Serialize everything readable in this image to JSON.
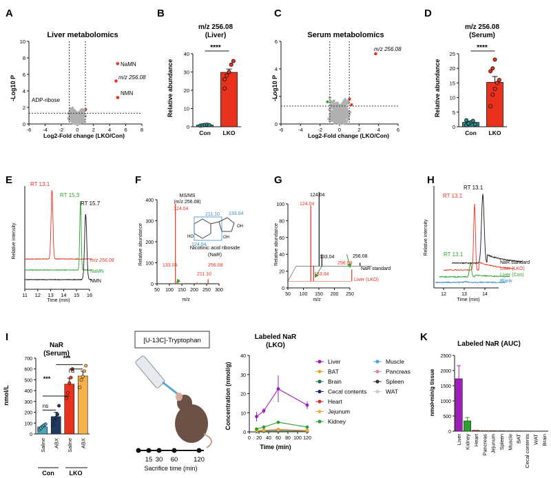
{
  "panels": {
    "A": {
      "letter": "A",
      "title": "Liver metabolomics",
      "ylabel": "-Log10 P",
      "xlabel": "Log2-Fold change (LKO/Con)",
      "xticks": [
        "-6",
        "-4",
        "-2",
        "0",
        "2",
        "4",
        "6",
        "8"
      ],
      "yticks": [
        "0",
        "2",
        "4",
        "6",
        "8",
        "10"
      ],
      "labels": {
        "namn": "NaMN",
        "mz": "m/z 256.08",
        "nmn": "NMN",
        "adp": "ADP-ribose"
      }
    },
    "B": {
      "letter": "B",
      "title1": "m/z 256.08",
      "title2": "(Liver)",
      "ylabel": "Relative abundance",
      "sig": "****",
      "yticks": [
        "0",
        "10",
        "20",
        "30",
        "40"
      ],
      "cats": [
        "Con",
        "LKO"
      ]
    },
    "C": {
      "letter": "C",
      "title": "Serum metabolomics",
      "ylabel": "-Log10 P",
      "xlabel": "Log2-Fold change (LKO/Con)",
      "xticks": [
        "-6",
        "-4",
        "-2",
        "0",
        "2",
        "4",
        "6"
      ],
      "yticks": [
        "0",
        "2",
        "4",
        "6"
      ],
      "labels": {
        "mz": "m/z 256.08"
      }
    },
    "D": {
      "letter": "D",
      "title1": "m/z 256.08",
      "title2": "(Serum)",
      "ylabel": "Relative abundance",
      "sig": "****",
      "yticks": [
        "0",
        "5",
        "10",
        "15",
        "20",
        "25"
      ],
      "cats": [
        "Con",
        "LKO"
      ]
    },
    "E": {
      "letter": "E",
      "ylabel": "Relative intensity",
      "xlabel": "Time (min)",
      "xticks": [
        "11",
        "12",
        "13",
        "14",
        "15",
        "16"
      ],
      "rt_red": "RT 13.1",
      "rt_green": "RT 15.3",
      "rt_black": "RT 15.7",
      "tr_red": "m/z 256.08",
      "tr_green": "NaMN",
      "tr_black": "NMN"
    },
    "F": {
      "letter": "F",
      "ylabel": "Relative abundance",
      "xlabel": "m/z",
      "msms1": "MS/MS",
      "msms2": "(m/z 256.08)",
      "xticks": [
        "50",
        "100",
        "150",
        "200",
        "250",
        "300"
      ],
      "yticks": [
        "0",
        "100",
        "200",
        "300",
        "400"
      ],
      "peak1": "124.04",
      "peak2": "133.04",
      "peak3": "211.10",
      "peak4": "256.08",
      "struct1": "211.10",
      "struct2": "133.04",
      "struct3": "124.04",
      "name1": "Nicotinic acid riboside",
      "name2": "(NaR)"
    },
    "G": {
      "letter": "G",
      "ylabel": "Relative abundance",
      "xlabel": "m/z",
      "xticks": [
        "50",
        "100",
        "150",
        "200",
        "250"
      ],
      "yticks": [
        "0",
        "20",
        "40",
        "60",
        "80",
        "100"
      ],
      "pk_black1": "124.04",
      "pk_black2": "133.04",
      "pk_black3": "256.08",
      "pk_red1": "124.04",
      "pk_red2": "133.04",
      "pk_red3": "256.08",
      "tr_black": "NaR standard",
      "tr_red": "Liver (LKO)"
    },
    "H": {
      "letter": "H",
      "ylabel": "Relative intensity",
      "xlabel": "Time (min)",
      "xticks": [
        "12",
        "13",
        "14"
      ],
      "rt_black": "RT 13.1",
      "rt_red": "RT 13.1",
      "rt_green": "RT 13.1",
      "tr_black": "NaR standard",
      "tr_red": "Liver (LKO)",
      "tr_green": "Liver (Con)",
      "tr_blue": "Blank"
    },
    "I": {
      "letter": "I",
      "title1": "NaR",
      "title2": "(Serum)",
      "ylabel": "nmol/L",
      "yticks": [
        "0",
        "100",
        "200",
        "300",
        "400",
        "500",
        "600",
        "700"
      ],
      "cats": [
        "Saline",
        "ABX",
        "Saline",
        "ABX"
      ],
      "groups": [
        "Con",
        "LKO"
      ],
      "sig_a": "***",
      "sig_b": "***",
      "ns_a": "ns",
      "ns_b": "ns"
    },
    "J": {
      "letter": "J",
      "tracer": "[U-13C]-Tryptophan",
      "sac_label": "Sacrifice time (min)",
      "times": [
        "15",
        "30",
        "60",
        "120"
      ],
      "title1": "Labeled NaR",
      "title2": "(LKO)",
      "ylabel": "Concentration (nmol/g)",
      "xlabel": "Time (min)",
      "xticks": [
        "0",
        "20",
        "40",
        "60",
        "80",
        "100",
        "120"
      ],
      "yticks": [
        "0",
        "10",
        "20",
        "30",
        "40"
      ]
    },
    "K": {
      "letter": "K",
      "title": "Labeled NaR (AUC)",
      "ylabel": "nmol•min/g tissue",
      "yticks": [
        "0",
        "500",
        "1000",
        "1500",
        "2000",
        "2500"
      ]
    }
  },
  "colors": {
    "red": "#e8321e",
    "green": "#2ca02c",
    "gray": "#b0b0b0",
    "orange": "#f6b14b",
    "navy": "#1f3b63",
    "teal": "#2a8c8a",
    "purple": "#9b1fb8",
    "black": "#111111",
    "blue": "#3a87c8"
  },
  "chart_data": [
    {
      "type": "scatter",
      "title": "Liver metabolomics",
      "xlabel": "Log2-Fold change (LKO/Con)",
      "ylabel": "-Log10 P",
      "xlim": [
        -6,
        8
      ],
      "ylim": [
        0,
        10
      ],
      "annotated": [
        {
          "name": "NaMN",
          "x": 5.0,
          "y": 7.3
        },
        {
          "name": "m/z 256.08",
          "x": 4.8,
          "y": 5.2
        },
        {
          "name": "NMN",
          "x": 5.0,
          "y": 3.2
        }
      ]
    },
    {
      "type": "bar",
      "title": "m/z 256.08 (Liver)",
      "categories": [
        "Con",
        "LKO"
      ],
      "values": [
        0.9,
        29.8
      ],
      "errors": [
        0.2,
        1.8
      ],
      "ylim": [
        0,
        40
      ],
      "points": [
        [
          0.6,
          0.8,
          1.0,
          1.1,
          0.9
        ],
        [
          21,
          28,
          30,
          34,
          36,
          26
        ]
      ]
    },
    {
      "type": "scatter",
      "title": "Serum metabolomics",
      "xlabel": "Log2-Fold change (LKO/Con)",
      "ylabel": "-Log10 P",
      "xlim": [
        -6,
        6
      ],
      "ylim": [
        0,
        6
      ],
      "annotated": [
        {
          "name": "m/z 256.08",
          "x": 3.7,
          "y": 5.1
        }
      ]
    },
    {
      "type": "bar",
      "title": "m/z 256.08 (Serum)",
      "categories": [
        "Con",
        "LKO"
      ],
      "values": [
        1.5,
        15.2
      ],
      "errors": [
        0.4,
        2.0
      ],
      "ylim": [
        0,
        25
      ],
      "points": [
        [
          0.5,
          1.0,
          1.5,
          2.0,
          0.8,
          2.2,
          1.1
        ],
        [
          7,
          11,
          13,
          15,
          16,
          19,
          20,
          23
        ]
      ]
    },
    {
      "type": "bar",
      "title": "NaR (Serum)",
      "ylabel": "nmol/L",
      "categories": [
        "Saline Con",
        "ABX Con",
        "Saline LKO",
        "ABX LKO"
      ],
      "values": [
        65,
        160,
        460,
        535
      ],
      "errors": [
        10,
        40,
        55,
        45
      ],
      "ylim": [
        0,
        700
      ],
      "points": [
        [
          40,
          55,
          70,
          80,
          90
        ],
        [
          80,
          120,
          150,
          180,
          260
        ],
        [
          330,
          380,
          470,
          520,
          600
        ],
        [
          430,
          500,
          530,
          580,
          630
        ]
      ]
    },
    {
      "type": "line",
      "title": "Labeled NaR (LKO)",
      "xlabel": "Time (min)",
      "ylabel": "Concentration (nmol/g)",
      "x": [
        15,
        30,
        60,
        120
      ],
      "ylim": [
        0,
        40
      ],
      "series": [
        {
          "name": "Liver",
          "values": [
            8.0,
            11.0,
            22.5,
            14.0
          ]
        },
        {
          "name": "Kidney",
          "values": [
            1.5,
            2.5,
            5.0,
            2.5
          ]
        },
        {
          "name": "BAT",
          "values": [
            0.5,
            0.7,
            1.0,
            0.6
          ]
        },
        {
          "name": "Brain",
          "values": [
            0.2,
            0.3,
            0.3,
            0.2
          ]
        },
        {
          "name": "Cecal contents",
          "values": [
            0.2,
            0.3,
            0.4,
            0.3
          ]
        },
        {
          "name": "Heart",
          "values": [
            0.6,
            0.8,
            1.2,
            0.7
          ]
        },
        {
          "name": "Jejunum",
          "values": [
            0.5,
            0.8,
            1.1,
            0.6
          ]
        },
        {
          "name": "Muscle",
          "values": [
            0.3,
            0.4,
            0.5,
            0.3
          ]
        },
        {
          "name": "Pancreas",
          "values": [
            0.4,
            0.5,
            0.7,
            0.4
          ]
        },
        {
          "name": "Spleen",
          "values": [
            0.3,
            0.4,
            0.6,
            0.3
          ]
        },
        {
          "name": "WAT",
          "values": [
            0.1,
            0.2,
            0.2,
            0.1
          ]
        }
      ]
    },
    {
      "type": "bar",
      "title": "Labeled NaR (AUC)",
      "ylabel": "nmol•min/g tissue",
      "ylim": [
        0,
        2500
      ],
      "categories": [
        "Liver",
        "Kidney",
        "Heart",
        "Pancreas",
        "Jejunum",
        "Spleen",
        "Muscle",
        "BAT",
        "Cecal contents",
        "WAT",
        "Brain"
      ],
      "values": [
        1730,
        340,
        30,
        20,
        18,
        12,
        10,
        9,
        7,
        5,
        4
      ]
    }
  ]
}
